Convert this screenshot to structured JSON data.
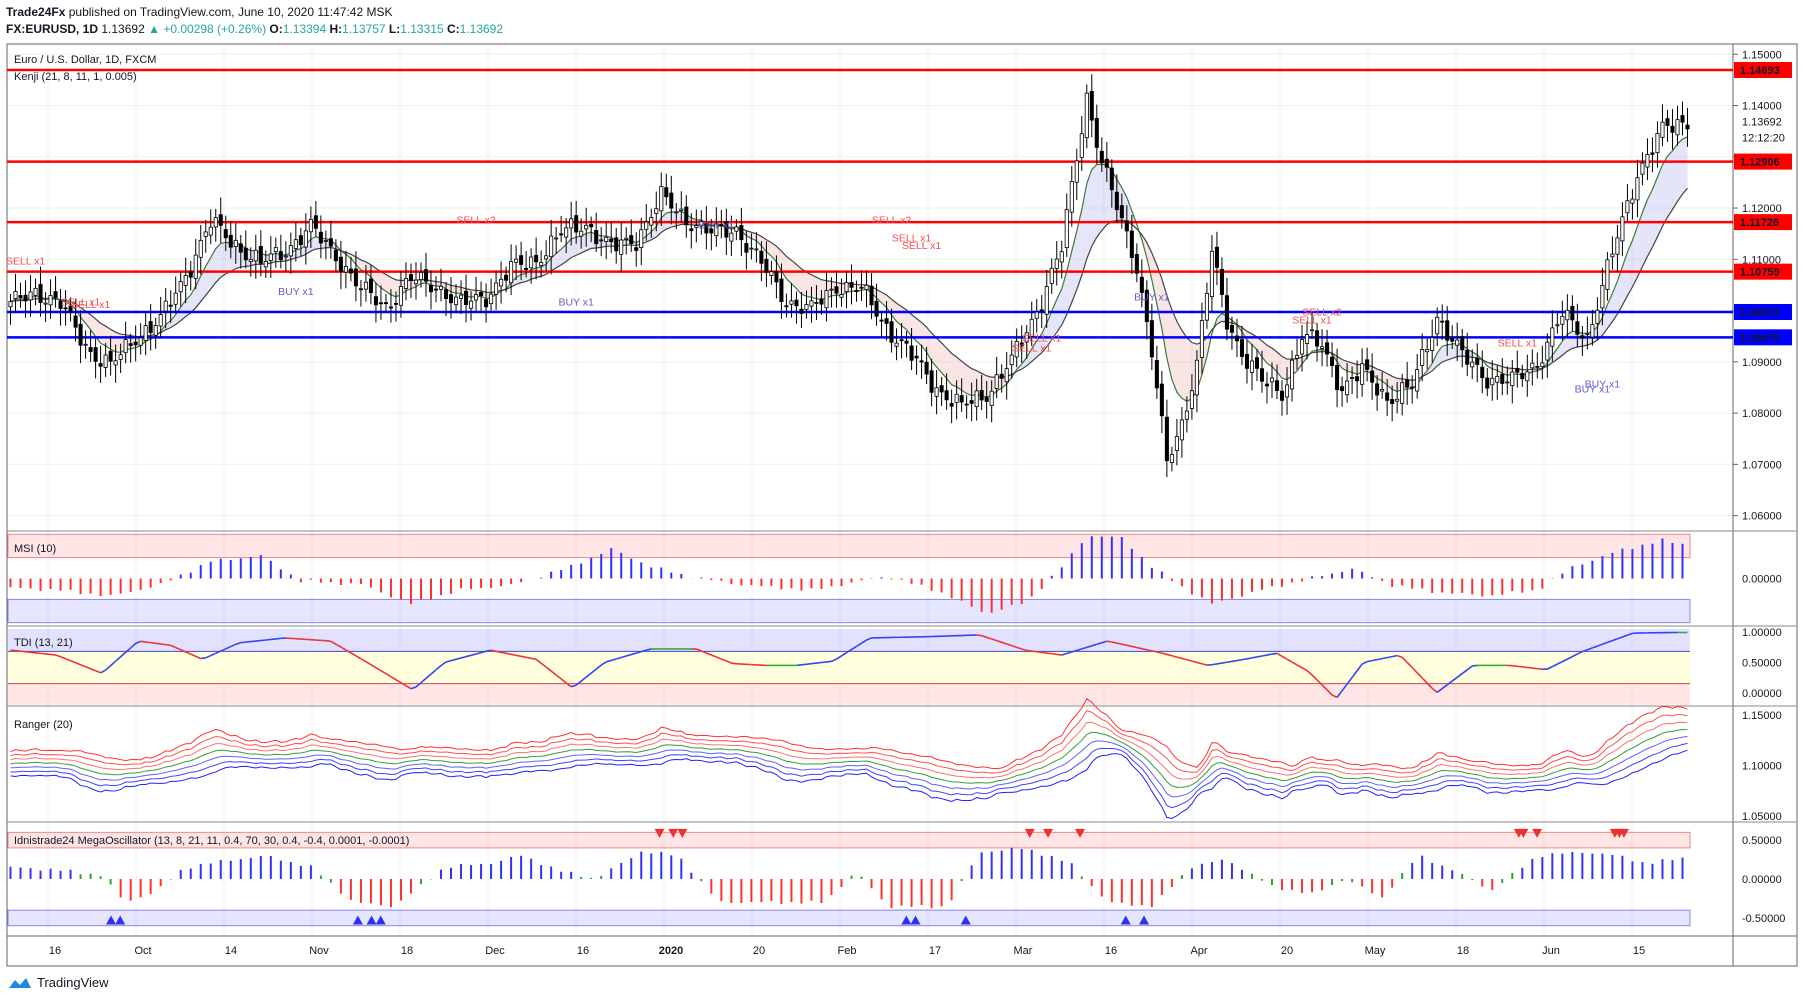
{
  "header": {
    "publisher": "Trade24Fx",
    "published_text": "published on TradingView.com, June 10, 2020 11:47:42 MSK",
    "symbol": "FX:EURUSD, 1D",
    "last": "1.13692",
    "change": "+0.00298 (+0.26%)",
    "o_label": "O:",
    "o": "1.13394",
    "h_label": "H:",
    "h": "1.13757",
    "l_label": "L:",
    "l": "1.13315",
    "c_label": "C:",
    "c": "1.13692"
  },
  "chart_title": "Euro / U.S. Dollar, 1D, FXCM",
  "indicator_label": "Kenji (21, 8, 11, 1, 0.005)",
  "footer_brand": "TradingView",
  "colors": {
    "up_candle": "#ffffff",
    "down_candle": "#000000",
    "resistance": "#ff0000",
    "support": "#0000ff",
    "sell_text": "#f05050",
    "buy_text": "#6060d0",
    "bull_hist": "#3030ff",
    "bear_hist": "#ff3030"
  },
  "chart_data": [
    {
      "type": "candlestick",
      "title": "Euro / U.S. Dollar, 1D, FXCM",
      "ylim": [
        1.057,
        1.152
      ],
      "y_ticks": [
        "1.15000",
        "1.14000",
        "1.13000",
        "1.12000",
        "1.11000",
        "1.10000",
        "1.09000",
        "1.08000",
        "1.07000",
        "1.06000"
      ],
      "x_ticks": [
        "16",
        "Oct",
        "14",
        "Nov",
        "18",
        "Dec",
        "16",
        "2020",
        "20",
        "Feb",
        "17",
        "Mar",
        "16",
        "Apr",
        "20",
        "May",
        "18",
        "Jun",
        "15"
      ],
      "price_tags": {
        "last": "1.13692",
        "countdown": "12:12:20",
        "resistance": [
          "1.14693",
          "1.12906",
          "1.11726",
          "1.10759"
        ],
        "support": [
          "1.09972",
          "1.09478"
        ]
      },
      "levels": {
        "resistance": [
          1.14693,
          1.12906,
          1.11726,
          1.10759
        ],
        "support": [
          1.09972,
          1.09478
        ]
      },
      "close_anchors": [
        [
          0,
          1.101
        ],
        [
          5,
          1.104
        ],
        [
          10,
          1.101
        ],
        [
          16,
          1.092
        ],
        [
          20,
          1.089
        ],
        [
          25,
          1.095
        ],
        [
          30,
          1.098
        ],
        [
          35,
          1.107
        ],
        [
          40,
          1.117
        ],
        [
          45,
          1.113
        ],
        [
          50,
          1.109
        ],
        [
          55,
          1.112
        ],
        [
          60,
          1.116
        ],
        [
          65,
          1.111
        ],
        [
          70,
          1.104
        ],
        [
          75,
          1.101
        ],
        [
          80,
          1.106
        ],
        [
          85,
          1.105
        ],
        [
          90,
          1.101
        ],
        [
          95,
          1.103
        ],
        [
          100,
          1.108
        ],
        [
          105,
          1.11
        ],
        [
          110,
          1.115
        ],
        [
          115,
          1.117
        ],
        [
          120,
          1.112
        ],
        [
          125,
          1.114
        ],
        [
          130,
          1.122
        ],
        [
          135,
          1.118
        ],
        [
          140,
          1.115
        ],
        [
          145,
          1.116
        ],
        [
          150,
          1.109
        ],
        [
          155,
          1.102
        ],
        [
          160,
          1.1
        ],
        [
          165,
          1.105
        ],
        [
          170,
          1.104
        ],
        [
          175,
          1.097
        ],
        [
          180,
          1.091
        ],
        [
          185,
          1.085
        ],
        [
          190,
          1.081
        ],
        [
          195,
          1.084
        ],
        [
          200,
          1.09
        ],
        [
          205,
          1.1
        ],
        [
          210,
          1.112
        ],
        [
          213,
          1.13
        ],
        [
          215,
          1.142
        ],
        [
          218,
          1.129
        ],
        [
          221,
          1.12
        ],
        [
          225,
          1.109
        ],
        [
          228,
          1.092
        ],
        [
          231,
          1.07
        ],
        [
          234,
          1.078
        ],
        [
          237,
          1.09
        ],
        [
          240,
          1.111
        ],
        [
          243,
          1.098
        ],
        [
          246,
          1.092
        ],
        [
          250,
          1.086
        ],
        [
          254,
          1.084
        ],
        [
          258,
          1.095
        ],
        [
          262,
          1.093
        ],
        [
          266,
          1.085
        ],
        [
          270,
          1.088
        ],
        [
          275,
          1.083
        ],
        [
          280,
          1.085
        ],
        [
          285,
          1.099
        ],
        [
          290,
          1.091
        ],
        [
          295,
          1.087
        ],
        [
          300,
          1.086
        ],
        [
          305,
          1.09
        ],
        [
          310,
          1.099
        ],
        [
          315,
          1.095
        ],
        [
          320,
          1.111
        ],
        [
          325,
          1.127
        ],
        [
          330,
          1.135
        ],
        [
          334,
          1.1369
        ]
      ],
      "signals": [
        {
          "text": "SELL x1",
          "i": 14,
          "p": 1.101,
          "side": "sell"
        },
        {
          "text": "SELL x1",
          "i": 16,
          "p": 1.1005,
          "side": "sell"
        },
        {
          "text": "SELL x1",
          "i": 3,
          "p": 1.109,
          "side": "sell"
        },
        {
          "text": "BUY x1",
          "i": 57,
          "p": 1.103,
          "side": "buy"
        },
        {
          "text": "SELL x2",
          "i": 93,
          "p": 1.117,
          "side": "sell"
        },
        {
          "text": "BUY x1",
          "i": 113,
          "p": 1.101,
          "side": "buy"
        },
        {
          "text": "BUY x1",
          "i": 141,
          "p": 1.116,
          "side": "buy"
        },
        {
          "text": "SELL x2",
          "i": 176,
          "p": 1.117,
          "side": "sell"
        },
        {
          "text": "SELL x1",
          "i": 180,
          "p": 1.1135,
          "side": "sell"
        },
        {
          "text": "SELL x1",
          "i": 182,
          "p": 1.112,
          "side": "sell"
        },
        {
          "text": "SELL x1",
          "i": 206,
          "p": 1.094,
          "side": "sell"
        },
        {
          "text": "SELL x1",
          "i": 204,
          "p": 1.092,
          "side": "sell"
        },
        {
          "text": "BUY x1",
          "i": 228,
          "p": 1.102,
          "side": "buy"
        },
        {
          "text": "SELL x2",
          "i": 262,
          "p": 1.099,
          "side": "sell"
        },
        {
          "text": "SELL x1",
          "i": 260,
          "p": 1.0975,
          "side": "sell"
        },
        {
          "text": "SELL x1",
          "i": 301,
          "p": 1.093,
          "side": "sell"
        },
        {
          "text": "BUY x1",
          "i": 318,
          "p": 1.085,
          "side": "buy"
        },
        {
          "text": "BUY x1",
          "i": 316,
          "p": 1.084,
          "side": "buy"
        }
      ]
    },
    {
      "type": "histogram",
      "title": "MSI (10)",
      "ylim": [
        -0.4,
        0.4
      ],
      "y_ticks": [
        "0.00000"
      ],
      "bands": {
        "upper": [
          0.18,
          0.38
        ],
        "lower": [
          -0.38,
          -0.18
        ]
      },
      "anchors": [
        [
          0,
          -0.08
        ],
        [
          10,
          -0.1
        ],
        [
          20,
          -0.15
        ],
        [
          30,
          -0.05
        ],
        [
          40,
          0.15
        ],
        [
          50,
          0.2
        ],
        [
          58,
          -0.02
        ],
        [
          70,
          -0.05
        ],
        [
          80,
          -0.22
        ],
        [
          90,
          -0.1
        ],
        [
          100,
          -0.06
        ],
        [
          112,
          0.1
        ],
        [
          120,
          0.25
        ],
        [
          128,
          0.1
        ],
        [
          135,
          0.02
        ],
        [
          145,
          -0.05
        ],
        [
          160,
          -0.1
        ],
        [
          175,
          0.02
        ],
        [
          185,
          -0.1
        ],
        [
          195,
          -0.3
        ],
        [
          203,
          -0.2
        ],
        [
          210,
          0.1
        ],
        [
          215,
          0.37
        ],
        [
          222,
          0.35
        ],
        [
          228,
          0.1
        ],
        [
          235,
          -0.1
        ],
        [
          240,
          -0.22
        ],
        [
          250,
          -0.1
        ],
        [
          260,
          0.0
        ],
        [
          268,
          0.08
        ],
        [
          276,
          -0.06
        ],
        [
          285,
          -0.12
        ],
        [
          295,
          -0.15
        ],
        [
          305,
          -0.1
        ],
        [
          312,
          0.1
        ],
        [
          322,
          0.25
        ],
        [
          330,
          0.33
        ],
        [
          334,
          0.3
        ]
      ]
    },
    {
      "type": "line",
      "title": "TDI (13, 21)",
      "ylim": [
        -0.2,
        1.08
      ],
      "y_ticks": [
        "1.00000",
        "0.50000",
        "0.00000"
      ],
      "anchors": [
        [
          0,
          0.7
        ],
        [
          10,
          0.62
        ],
        [
          20,
          0.32
        ],
        [
          28,
          0.85
        ],
        [
          35,
          0.78
        ],
        [
          42,
          0.55
        ],
        [
          50,
          0.82
        ],
        [
          60,
          0.9
        ],
        [
          70,
          0.85
        ],
        [
          78,
          0.5
        ],
        [
          88,
          0.05
        ],
        [
          95,
          0.5
        ],
        [
          105,
          0.7
        ],
        [
          115,
          0.55
        ],
        [
          123,
          0.08
        ],
        [
          130,
          0.5
        ],
        [
          140,
          0.72
        ],
        [
          150,
          0.72
        ],
        [
          158,
          0.48
        ],
        [
          165,
          0.45
        ],
        [
          172,
          0.45
        ],
        [
          180,
          0.52
        ],
        [
          188,
          0.9
        ],
        [
          200,
          0.92
        ],
        [
          212,
          0.95
        ],
        [
          222,
          0.7
        ],
        [
          230,
          0.62
        ],
        [
          240,
          0.85
        ],
        [
          252,
          0.65
        ],
        [
          262,
          0.45
        ],
        [
          270,
          0.55
        ],
        [
          277,
          0.65
        ],
        [
          284,
          0.35
        ],
        [
          290,
          -0.1
        ],
        [
          296,
          0.5
        ],
        [
          304,
          0.62
        ],
        [
          312,
          0.0
        ],
        [
          320,
          0.45
        ],
        [
          328,
          0.45
        ],
        [
          336,
          0.38
        ],
        [
          344,
          0.68
        ],
        [
          355,
          0.98
        ],
        [
          364,
          0.99
        ],
        [
          368,
          0.99
        ]
      ]
    },
    {
      "type": "line",
      "title": "Ranger (20)",
      "ylim": [
        1.045,
        1.158
      ],
      "y_ticks": [
        "1.15000",
        "1.10000",
        "1.05000"
      ]
    },
    {
      "type": "histogram",
      "title": "Idnistrade24 MegaOscillator (13, 8, 21, 11, 0.4, 70, 30, 0.4, -0.4, 0.0001, -0.0001)",
      "ylim": [
        -0.72,
        0.72
      ],
      "y_ticks": [
        "0.50000",
        "0.00000",
        "-0.50000"
      ],
      "bands": {
        "upper": [
          0.4,
          0.6
        ],
        "lower": [
          -0.6,
          -0.4
        ]
      },
      "anchors": [
        [
          0,
          0.15
        ],
        [
          10,
          0.12
        ],
        [
          20,
          0.05
        ],
        [
          25,
          -0.3
        ],
        [
          32,
          -0.15
        ],
        [
          38,
          0.15
        ],
        [
          48,
          0.25
        ],
        [
          56,
          0.3
        ],
        [
          66,
          0.15
        ],
        [
          75,
          -0.3
        ],
        [
          84,
          -0.35
        ],
        [
          95,
          0.15
        ],
        [
          105,
          0.2
        ],
        [
          112,
          0.3
        ],
        [
          120,
          0.1
        ],
        [
          128,
          0.0
        ],
        [
          138,
          0.35
        ],
        [
          146,
          0.3
        ],
        [
          155,
          -0.3
        ],
        [
          165,
          -0.3
        ],
        [
          178,
          -0.3
        ],
        [
          185,
          0.1
        ],
        [
          192,
          -0.35
        ],
        [
          205,
          -0.35
        ],
        [
          212,
          0.35
        ],
        [
          222,
          0.4
        ],
        [
          232,
          0.2
        ],
        [
          240,
          -0.3
        ],
        [
          250,
          -0.35
        ],
        [
          258,
          0.15
        ],
        [
          266,
          0.25
        ],
        [
          276,
          -0.1
        ],
        [
          285,
          -0.2
        ],
        [
          292,
          0.0
        ],
        [
          300,
          -0.25
        ],
        [
          308,
          0.3
        ],
        [
          316,
          0.1
        ],
        [
          324,
          -0.15
        ],
        [
          334,
          0.3
        ],
        [
          344,
          0.35
        ],
        [
          352,
          0.3
        ],
        [
          358,
          0.2
        ],
        [
          368,
          0.3
        ]
      ],
      "tri_up": [
        22,
        24,
        76,
        79,
        81,
        196,
        198,
        209,
        244,
        248
      ],
      "tri_down": [
        142,
        145,
        147,
        223,
        227,
        234,
        330,
        331,
        334,
        351,
        352,
        353
      ]
    }
  ]
}
